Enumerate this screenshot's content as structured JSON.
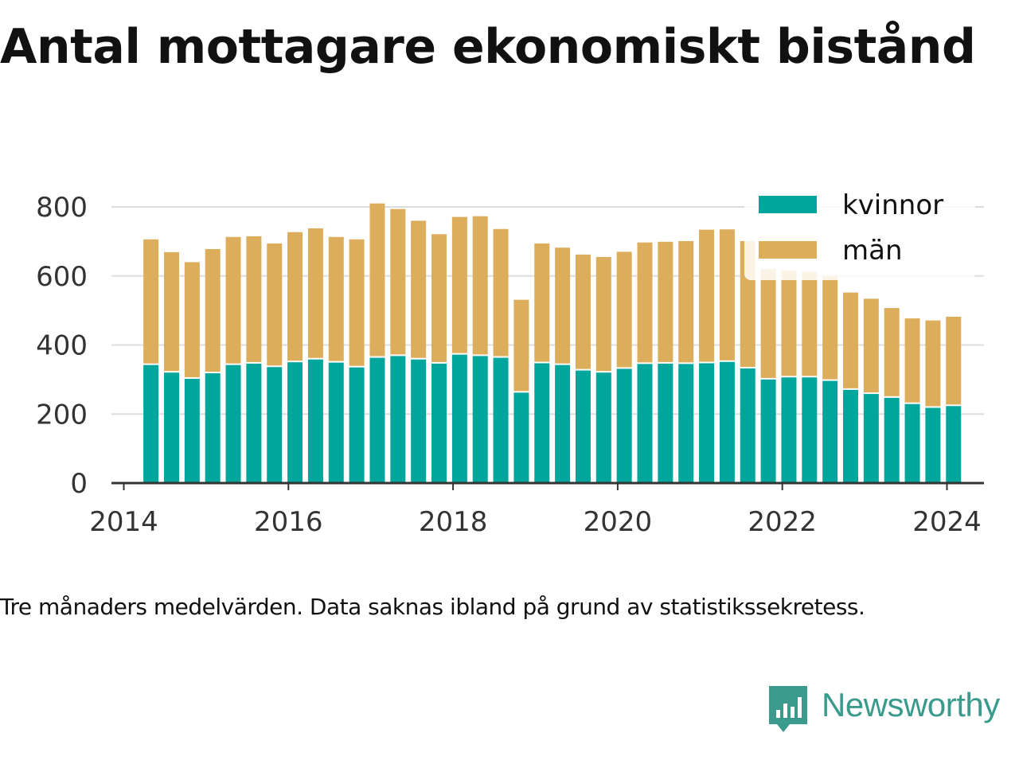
{
  "title": "Antal mottagare ekonomiskt bistånd",
  "caption": "Tre månaders medelvärden. Data saknas ibland på grund av statistikssekretess.",
  "brand": {
    "name": "Newsworthy",
    "color": "#3a9b8c",
    "icon": "newsworthy-logo-icon"
  },
  "colors": {
    "kvinnor": "#00a59b",
    "man": "#dcad5a",
    "grid": "#dddddd",
    "axis": "#333333",
    "tick_text": "#333333"
  },
  "chart_data": {
    "type": "bar",
    "stacked": true,
    "title": "Antal mottagare ekonomiskt bistånd",
    "xlabel": "",
    "ylabel": "",
    "ylim": [
      0,
      800
    ],
    "yticks": [
      0,
      200,
      400,
      600,
      800
    ],
    "xlim": [
      2013.85,
      2024.45
    ],
    "xticks": [
      2014,
      2016,
      2018,
      2020,
      2022,
      2024
    ],
    "grid": true,
    "legend": "top-right",
    "x": [
      2014.33,
      2014.58,
      2014.83,
      2015.08,
      2015.33,
      2015.58,
      2015.83,
      2016.08,
      2016.33,
      2016.58,
      2016.83,
      2017.08,
      2017.33,
      2017.58,
      2017.83,
      2018.08,
      2018.33,
      2018.58,
      2018.83,
      2019.08,
      2019.33,
      2019.58,
      2019.83,
      2020.08,
      2020.33,
      2020.58,
      2020.83,
      2021.08,
      2021.33,
      2021.58,
      2021.83,
      2022.08,
      2022.33,
      2022.58,
      2022.83,
      2023.08,
      2023.33,
      2023.58,
      2023.83,
      2024.08
    ],
    "series": [
      {
        "name": "kvinnor",
        "color": "#00a59b",
        "values": [
          342,
          320,
          302,
          318,
          342,
          346,
          336,
          350,
          358,
          349,
          335,
          363,
          368,
          358,
          346,
          372,
          368,
          363,
          262,
          347,
          342,
          326,
          320,
          331,
          345,
          346,
          345,
          347,
          351,
          332,
          300,
          306,
          306,
          296,
          270,
          258,
          247,
          229,
          218,
          223
        ]
      },
      {
        "name": "män",
        "color": "#dcad5a",
        "values": [
          364,
          349,
          338,
          360,
          371,
          369,
          358,
          377,
          380,
          364,
          371,
          447,
          426,
          402,
          375,
          399,
          405,
          373,
          269,
          347,
          340,
          336,
          335,
          339,
          352,
          353,
          356,
          387,
          384,
          369,
          320,
          310,
          306,
          304,
          282,
          276,
          260,
          248,
          253,
          259
        ]
      }
    ]
  }
}
